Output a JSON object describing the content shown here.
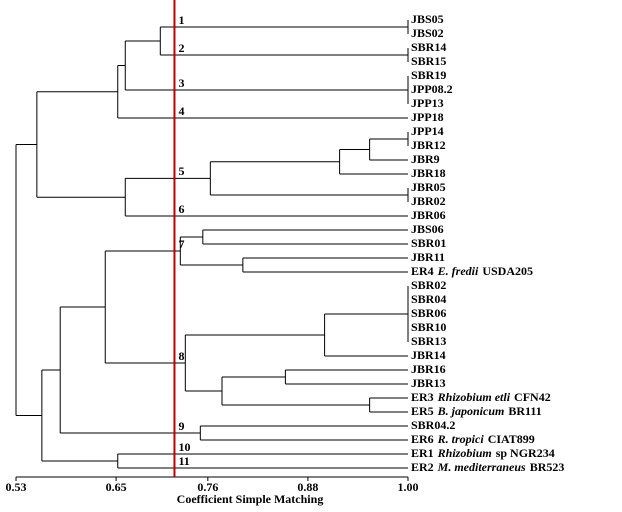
{
  "chart_data": {
    "type": "dendrogram",
    "x_label": "Coefficient Simple Matching",
    "xlim": [
      0.53,
      1
    ],
    "xticks": [
      0.53,
      0.65,
      0.76,
      0.88,
      {
        "value": 1,
        "label": "1.00"
      }
    ],
    "threshold": 0.72,
    "threshold_color": "#c00000",
    "tree": {
      "height": 0.53,
      "children": [
        {
          "height": 0.555,
          "children": [
            {
              "height": 0.652,
              "children": [
                {
                  "height": 0.661,
                  "children": [
                    {
                      "height": 0.703,
                      "children": [
                        {
                          "height": 1,
                          "cluster": "1",
                          "children": [
                            {
                              "name": "JBS05"
                            },
                            {
                              "name": "JBS02"
                            }
                          ]
                        },
                        {
                          "height": 1,
                          "cluster": "2",
                          "children": [
                            {
                              "name": "SBR14"
                            },
                            {
                              "name": "SBR15"
                            }
                          ]
                        }
                      ]
                    },
                    {
                      "height": 1,
                      "cluster": "3",
                      "children": [
                        {
                          "name": "SBR19"
                        },
                        {
                          "name": "JPP08.2"
                        },
                        {
                          "name": "JPP13"
                        }
                      ]
                    }
                  ]
                },
                {
                  "name": "JPP18",
                  "cluster": "4"
                }
              ]
            },
            {
              "height": 0.661,
              "children": [
                {
                  "height": 0.763,
                  "cluster": "5",
                  "children": [
                    {
                      "height": 0.918,
                      "children": [
                        {
                          "height": 0.954,
                          "children": [
                            {
                              "height": 1,
                              "children": [
                                {
                                  "name": "JPP14"
                                },
                                {
                                  "name": "JBR12"
                                }
                              ]
                            },
                            {
                              "name": "JBR9"
                            }
                          ]
                        },
                        {
                          "name": "JBR18"
                        }
                      ]
                    },
                    {
                      "height": 1,
                      "children": [
                        {
                          "name": "JBR05"
                        },
                        {
                          "name": "JBR02"
                        }
                      ]
                    }
                  ]
                },
                {
                  "name": "JBR06",
                  "cluster": "6"
                }
              ]
            }
          ]
        },
        {
          "height": 0.561,
          "children": [
            {
              "height": 0.583,
              "children": [
                {
                  "height": 0.637,
                  "children": [
                    {
                      "height": 0.727,
                      "cluster": "7",
                      "children": [
                        {
                          "height": 0.754,
                          "children": [
                            {
                              "name": "JBS06"
                            },
                            {
                              "name": "SBR01"
                            }
                          ]
                        },
                        {
                          "height": 0.802,
                          "children": [
                            {
                              "name": "JBR11"
                            },
                            {
                              "name": "ER4",
                              "species": "E. fredii",
                              "strain": "USDA205"
                            }
                          ]
                        }
                      ]
                    },
                    {
                      "height": 0.733,
                      "cluster": "8",
                      "children": [
                        {
                          "height": 0.9,
                          "children": [
                            {
                              "height": 1,
                              "children": [
                                {
                                  "name": "SBR02"
                                },
                                {
                                  "name": "SBR04"
                                },
                                {
                                  "name": "SBR06"
                                },
                                {
                                  "name": "SBR10"
                                },
                                {
                                  "name": "SBR13"
                                }
                              ]
                            },
                            {
                              "name": "JBR14"
                            }
                          ]
                        },
                        {
                          "height": 0.777,
                          "children": [
                            {
                              "height": 0.853,
                              "children": [
                                {
                                  "name": "JBR16"
                                },
                                {
                                  "name": "JBR13"
                                }
                              ]
                            },
                            {
                              "height": 0.954,
                              "children": [
                                {
                                  "name": "ER3",
                                  "species": "Rhizobium etli",
                                  "strain": "CFN42"
                                },
                                {
                                  "name": "ER5",
                                  "species": "B. japonicum",
                                  "strain": "BR111"
                                }
                              ]
                            }
                          ]
                        }
                      ]
                    }
                  ]
                },
                {
                  "height": 0.751,
                  "cluster": "9",
                  "children": [
                    {
                      "name": "SBR04.2"
                    },
                    {
                      "name": "ER6",
                      "species": "R. tropici",
                      "strain": "CIAT899"
                    }
                  ]
                }
              ]
            },
            {
              "height": 0.652,
              "children": [
                {
                  "name": "ER1",
                  "species": "Rhizobium",
                  "strain": "sp NGR234",
                  "cluster": "10"
                },
                {
                  "name": "ER2",
                  "species": "M. mediterraneus",
                  "strain": "BR523",
                  "cluster": "11"
                }
              ]
            }
          ]
        }
      ]
    }
  }
}
